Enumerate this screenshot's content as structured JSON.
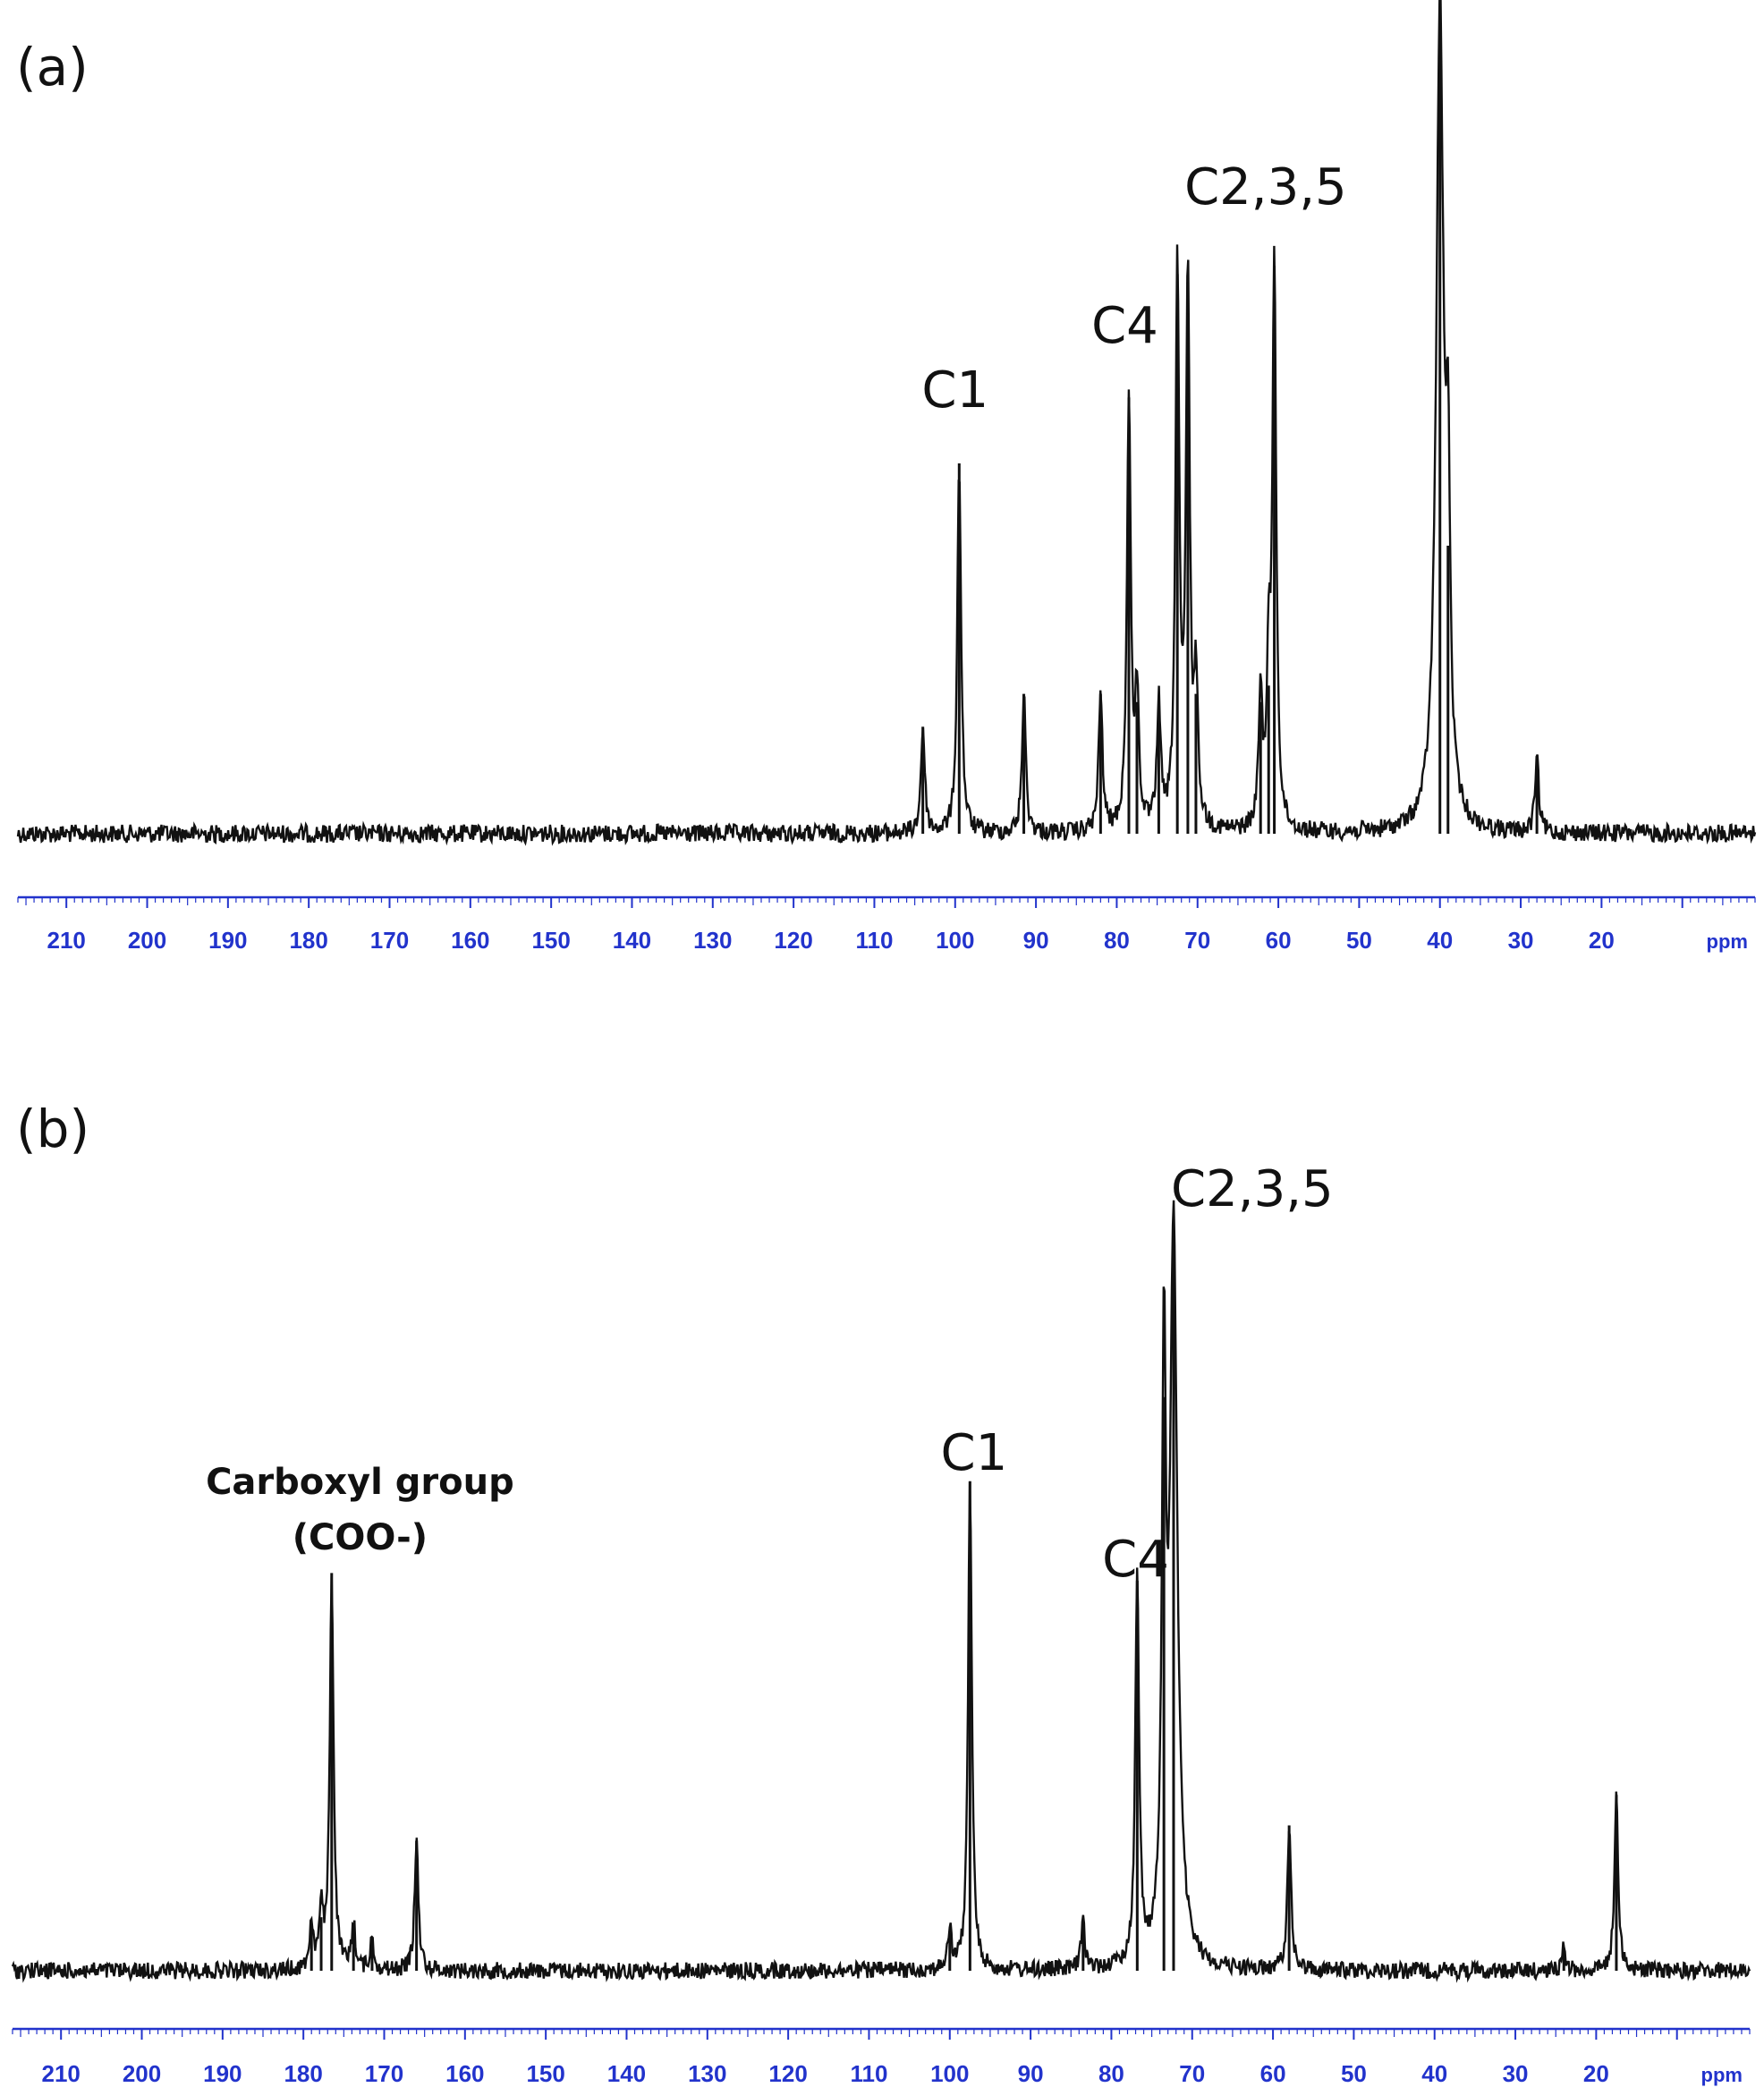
{
  "chart_data": [
    {
      "type": "line",
      "panel_label": "(a)",
      "x_unit_label": "ppm",
      "xlim": [
        216,
        1
      ],
      "x_reversed": true,
      "x_ticks": [
        210,
        200,
        190,
        180,
        170,
        160,
        150,
        140,
        130,
        120,
        110,
        100,
        90,
        80,
        70,
        60,
        50,
        40,
        30,
        20
      ],
      "ylim": [
        0,
        1
      ],
      "baseline": 0.0,
      "peaks": [
        {
          "x": 104.0,
          "y": 0.13
        },
        {
          "x": 99.5,
          "y": 0.45
        },
        {
          "x": 91.5,
          "y": 0.17
        },
        {
          "x": 82.0,
          "y": 0.17
        },
        {
          "x": 78.5,
          "y": 0.53
        },
        {
          "x": 77.5,
          "y": 0.16
        },
        {
          "x": 74.8,
          "y": 0.15
        },
        {
          "x": 72.5,
          "y": 0.68
        },
        {
          "x": 71.2,
          "y": 0.67
        },
        {
          "x": 70.2,
          "y": 0.17
        },
        {
          "x": 62.2,
          "y": 0.16
        },
        {
          "x": 61.2,
          "y": 0.18
        },
        {
          "x": 60.5,
          "y": 0.69
        },
        {
          "x": 40.0,
          "y": 1.0
        },
        {
          "x": 39.0,
          "y": 0.35
        },
        {
          "x": 28.0,
          "y": 0.09
        }
      ],
      "annotations": [
        {
          "text": "C1",
          "x": 100
        },
        {
          "text": "C4",
          "x": 79
        },
        {
          "text": "C2,3,5",
          "x": 66
        }
      ]
    },
    {
      "type": "line",
      "panel_label": "(b)",
      "x_unit_label": "ppm",
      "xlim": [
        216,
        1
      ],
      "x_reversed": true,
      "x_ticks": [
        210,
        200,
        190,
        180,
        170,
        160,
        150,
        140,
        130,
        120,
        110,
        100,
        90,
        80,
        70,
        60,
        50,
        40,
        30,
        20
      ],
      "ylim": [
        0,
        1
      ],
      "baseline": 0.0,
      "peaks": [
        {
          "x": 179.0,
          "y": 0.06
        },
        {
          "x": 177.8,
          "y": 0.07
        },
        {
          "x": 176.5,
          "y": 0.52
        },
        {
          "x": 173.8,
          "y": 0.06
        },
        {
          "x": 171.5,
          "y": 0.04
        },
        {
          "x": 166.0,
          "y": 0.17
        },
        {
          "x": 100.0,
          "y": 0.05
        },
        {
          "x": 97.5,
          "y": 0.64
        },
        {
          "x": 83.5,
          "y": 0.06
        },
        {
          "x": 76.8,
          "y": 0.51
        },
        {
          "x": 73.5,
          "y": 0.75
        },
        {
          "x": 72.3,
          "y": 0.96
        },
        {
          "x": 58.0,
          "y": 0.19
        },
        {
          "x": 24.0,
          "y": 0.03
        },
        {
          "x": 17.5,
          "y": 0.23
        }
      ],
      "annotations": [
        {
          "text": "Carboxyl group",
          "x": 173
        },
        {
          "text": "(COO-)",
          "x": 173
        },
        {
          "text": "C1",
          "x": 97
        },
        {
          "text": "C4",
          "x": 77
        },
        {
          "text": "C2,3,5",
          "x": 67
        }
      ]
    }
  ]
}
